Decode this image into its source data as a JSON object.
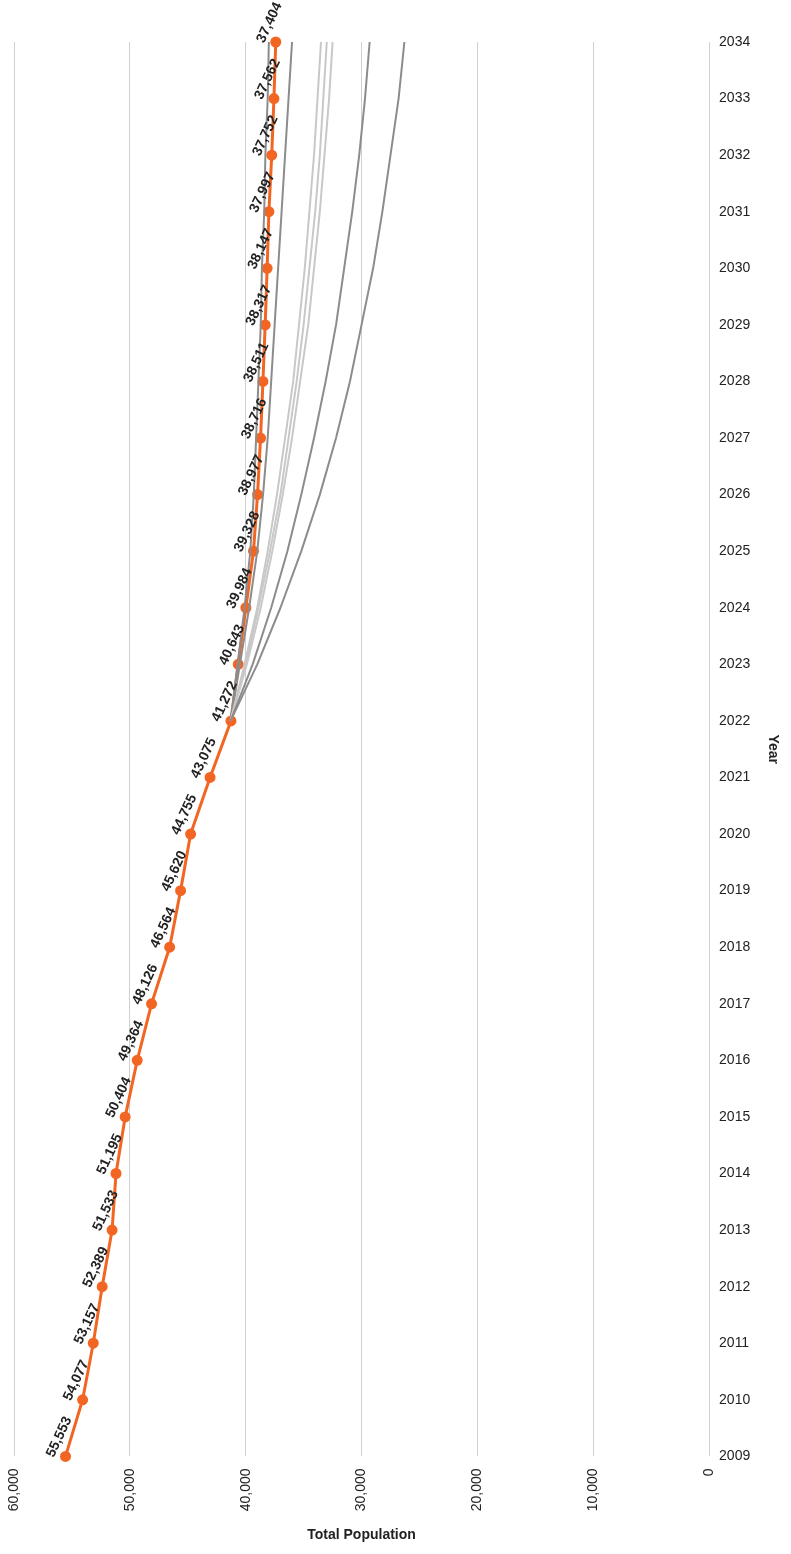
{
  "chart_data": {
    "type": "line",
    "orientation": "horizontal",
    "xlabel": "Total Population",
    "ylabel": "Year",
    "categories": [
      "2034",
      "2033",
      "2032",
      "2031",
      "2030",
      "2029",
      "2028",
      "2027",
      "2026",
      "2025",
      "2024",
      "2023",
      "2022",
      "2021",
      "2020",
      "2019",
      "2018",
      "2017",
      "2016",
      "2015",
      "2014",
      "2013",
      "2012",
      "2011",
      "2010",
      "2009"
    ],
    "xlim": [
      60000,
      0
    ],
    "xticks": [
      {
        "value": 0,
        "label": "0"
      },
      {
        "value": 10000,
        "label": "10,000"
      },
      {
        "value": 20000,
        "label": "20,000"
      },
      {
        "value": 30000,
        "label": "30,000"
      },
      {
        "value": 40000,
        "label": "40,000"
      },
      {
        "value": 50000,
        "label": "50,000"
      },
      {
        "value": 60000,
        "label": "60,000"
      }
    ],
    "grid": "x",
    "legend": false,
    "series": [
      {
        "color": "#8c8c8c",
        "marker": "none",
        "values": [
          26300,
          26800,
          27500,
          28200,
          29000,
          30000,
          31000,
          32200,
          33600,
          35200,
          37000,
          39000,
          41300,
          null,
          null,
          null,
          null,
          null,
          null,
          null,
          null,
          null,
          null,
          null,
          null,
          null
        ]
      },
      {
        "color": "#8c8c8c",
        "marker": "none",
        "values": [
          29300,
          29700,
          30200,
          30800,
          31500,
          32200,
          33100,
          34100,
          35200,
          36400,
          37800,
          39400,
          41300,
          null,
          null,
          null,
          null,
          null,
          null,
          null,
          null,
          null,
          null,
          null,
          null,
          null
        ]
      },
      {
        "color": "#c8c8c8",
        "marker": "none",
        "values": [
          32500,
          32800,
          33200,
          33600,
          34100,
          34600,
          35300,
          36000,
          36800,
          37700,
          38700,
          39900,
          41300,
          null,
          null,
          null,
          null,
          null,
          null,
          null,
          null,
          null,
          null,
          null,
          null,
          null
        ]
      },
      {
        "color": "#c8c8c8",
        "marker": "none",
        "values": [
          33000,
          33300,
          33600,
          34000,
          34500,
          35000,
          35600,
          36300,
          37000,
          37900,
          38900,
          40000,
          41300,
          null,
          null,
          null,
          null,
          null,
          null,
          null,
          null,
          null,
          null,
          null,
          null,
          null
        ]
      },
      {
        "color": "#c8c8c8",
        "marker": "none",
        "values": [
          33500,
          33800,
          34100,
          34500,
          34900,
          35400,
          35900,
          36600,
          37300,
          38100,
          39000,
          40100,
          41300,
          null,
          null,
          null,
          null,
          null,
          null,
          null,
          null,
          null,
          null,
          null,
          null,
          null
        ]
      },
      {
        "color": "#8c8c8c",
        "marker": "none",
        "values": [
          36000,
          36300,
          36600,
          36900,
          37200,
          37500,
          37800,
          38100,
          38500,
          39000,
          39700,
          40500,
          41300,
          null,
          null,
          null,
          null,
          null,
          null,
          null,
          null,
          null,
          null,
          null,
          null,
          null
        ]
      },
      {
        "color": "#8c8c8c",
        "marker": "none",
        "values": [
          38000,
          38100,
          38300,
          38400,
          38600,
          38700,
          38900,
          39100,
          39300,
          39600,
          40100,
          40700,
          41300,
          null,
          null,
          null,
          null,
          null,
          null,
          null,
          null,
          null,
          null,
          null,
          null,
          null
        ]
      },
      {
        "color": "#f26522",
        "marker": "circle",
        "data_labels": true,
        "value_labels": [
          "37,404",
          "37,562",
          "37,752",
          "37,997",
          "38,147",
          "38,317",
          "38,511",
          "38,716",
          "38,977",
          "39,328",
          "39,984",
          "40,643",
          "41,272",
          "43,075",
          "44,755",
          "45,620",
          "46,564",
          "48,126",
          "49,364",
          "50,404",
          "51,195",
          "51,533",
          "52,389",
          "53,157",
          "54,077",
          "55,553"
        ],
        "values": [
          37404,
          37562,
          37752,
          37997,
          38147,
          38317,
          38511,
          38716,
          38977,
          39328,
          39984,
          40643,
          41272,
          43075,
          44755,
          45620,
          46564,
          48126,
          49364,
          50404,
          51195,
          51533,
          52389,
          53157,
          54077,
          55553
        ]
      }
    ]
  }
}
